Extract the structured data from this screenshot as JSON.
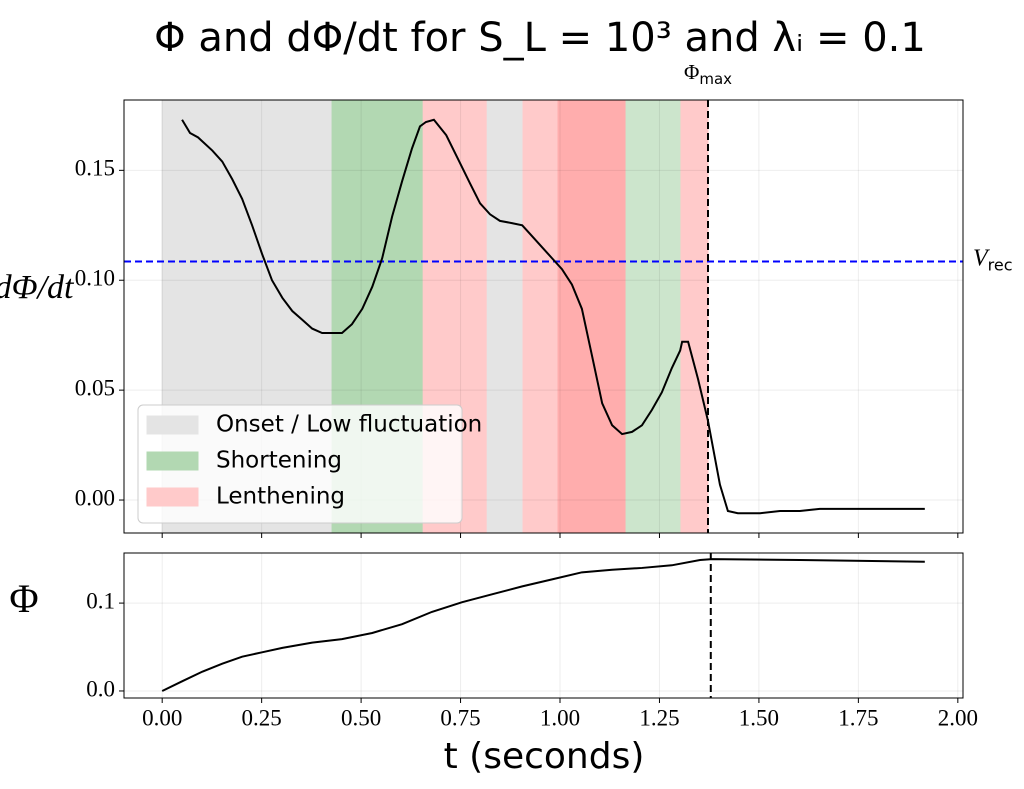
{
  "chart_data": [
    {
      "type": "line",
      "title": "Φ and dΦ/dt for S_L = 10³ and λᵢ = 0.1",
      "ylabel": "dΦ/dt",
      "x": [
        0.05,
        0.07,
        0.09,
        0.126,
        0.151,
        0.176,
        0.201,
        0.226,
        0.251,
        0.276,
        0.302,
        0.327,
        0.352,
        0.377,
        0.402,
        0.427,
        0.452,
        0.477,
        0.503,
        0.528,
        0.553,
        0.578,
        0.603,
        0.628,
        0.648,
        0.663,
        0.683,
        0.714,
        0.744,
        0.774,
        0.799,
        0.824,
        0.849,
        0.879,
        0.905,
        0.925,
        0.95,
        0.98,
        1.005,
        1.03,
        1.055,
        1.08,
        1.106,
        1.131,
        1.156,
        1.181,
        1.206,
        1.231,
        1.256,
        1.281,
        1.302,
        1.307,
        1.322,
        1.347,
        1.372,
        1.402,
        1.422,
        1.447,
        1.503,
        1.553,
        1.603,
        1.653,
        1.754,
        1.917
      ],
      "values": [
        0.173,
        0.167,
        0.165,
        0.159,
        0.154,
        0.146,
        0.137,
        0.125,
        0.112,
        0.1,
        0.092,
        0.086,
        0.082,
        0.078,
        0.076,
        0.076,
        0.076,
        0.08,
        0.087,
        0.097,
        0.11,
        0.129,
        0.145,
        0.16,
        0.17,
        0.172,
        0.173,
        0.166,
        0.155,
        0.144,
        0.135,
        0.13,
        0.127,
        0.126,
        0.125,
        0.121,
        0.116,
        0.11,
        0.105,
        0.098,
        0.087,
        0.066,
        0.044,
        0.034,
        0.03,
        0.031,
        0.034,
        0.041,
        0.049,
        0.06,
        0.068,
        0.072,
        0.072,
        0.055,
        0.036,
        0.007,
        -0.005,
        -0.006,
        -0.006,
        -0.005,
        -0.005,
        -0.004,
        -0.004,
        -0.004
      ],
      "color": "#000000",
      "xlim": [
        -0.096,
        2.013
      ],
      "ylim": [
        -0.015,
        0.182
      ],
      "yticks": [
        {
          "value": 0,
          "label": "0.00"
        },
        {
          "value": 0.05,
          "label": "0.05"
        },
        {
          "value": 0.1,
          "label": "0.10"
        },
        {
          "value": 0.15,
          "label": "0.15"
        }
      ],
      "grid": true,
      "spans": [
        {
          "start": 0.0,
          "end": 0.427,
          "color": "#e4e4e4"
        },
        {
          "start": 0.427,
          "end": 0.656,
          "color": "#b2d8b2"
        },
        {
          "start": 0.656,
          "end": 0.817,
          "color": "#ffcaca"
        },
        {
          "start": 0.817,
          "end": 0.907,
          "color": "#e4e4e4"
        },
        {
          "start": 0.907,
          "end": 0.995,
          "color": "#ffcaca"
        },
        {
          "start": 0.995,
          "end": 1.166,
          "color": "#ffadad"
        },
        {
          "start": 1.166,
          "end": 1.304,
          "color": "#cce5cc"
        },
        {
          "start": 1.304,
          "end": 1.372,
          "color": "#ffcaca"
        }
      ],
      "legend": [
        {
          "name": "Onset / Low fluctuation",
          "color": "#e4e4e4"
        },
        {
          "name": "Shortening",
          "color": "#b2d8b2"
        },
        {
          "name": "Lenthening",
          "color": "#ffcaca"
        }
      ],
      "legend_position": "lower left",
      "hline": {
        "value": 0.1085,
        "color": "#0000ff",
        "label": "V",
        "label_sub": "rec"
      },
      "vline": {
        "value": 1.372,
        "color": "#000000",
        "label": "Φ",
        "label_sub": "max"
      }
    },
    {
      "type": "line",
      "ylabel": "Φ",
      "xlabel": "t (seconds)",
      "x": [
        0.0,
        0.05,
        0.101,
        0.151,
        0.201,
        0.251,
        0.302,
        0.377,
        0.452,
        0.528,
        0.603,
        0.678,
        0.754,
        0.829,
        0.905,
        0.98,
        1.055,
        1.131,
        1.206,
        1.281,
        1.352,
        1.382,
        1.603,
        1.917
      ],
      "values": [
        0.0,
        0.011,
        0.022,
        0.031,
        0.039,
        0.044,
        0.049,
        0.055,
        0.059,
        0.066,
        0.076,
        0.09,
        0.101,
        0.11,
        0.119,
        0.127,
        0.135,
        0.138,
        0.14,
        0.143,
        0.149,
        0.15,
        0.149,
        0.147
      ],
      "color": "#000000",
      "xlim": [
        -0.096,
        2.013
      ],
      "ylim": [
        -0.008,
        0.157
      ],
      "xticks": [
        {
          "value": 0,
          "label": "0.00"
        },
        {
          "value": 0.25,
          "label": "0.25"
        },
        {
          "value": 0.5,
          "label": "0.50"
        },
        {
          "value": 0.75,
          "label": "0.75"
        },
        {
          "value": 1,
          "label": "1.00"
        },
        {
          "value": 1.25,
          "label": "1.25"
        },
        {
          "value": 1.5,
          "label": "1.50"
        },
        {
          "value": 1.75,
          "label": "1.75"
        },
        {
          "value": 2,
          "label": "2.00"
        }
      ],
      "yticks": [
        {
          "value": 0,
          "label": "0.0"
        },
        {
          "value": 0.1,
          "label": "0.1"
        }
      ],
      "grid": true,
      "vline": {
        "value": 1.379,
        "color": "#000000"
      }
    }
  ]
}
